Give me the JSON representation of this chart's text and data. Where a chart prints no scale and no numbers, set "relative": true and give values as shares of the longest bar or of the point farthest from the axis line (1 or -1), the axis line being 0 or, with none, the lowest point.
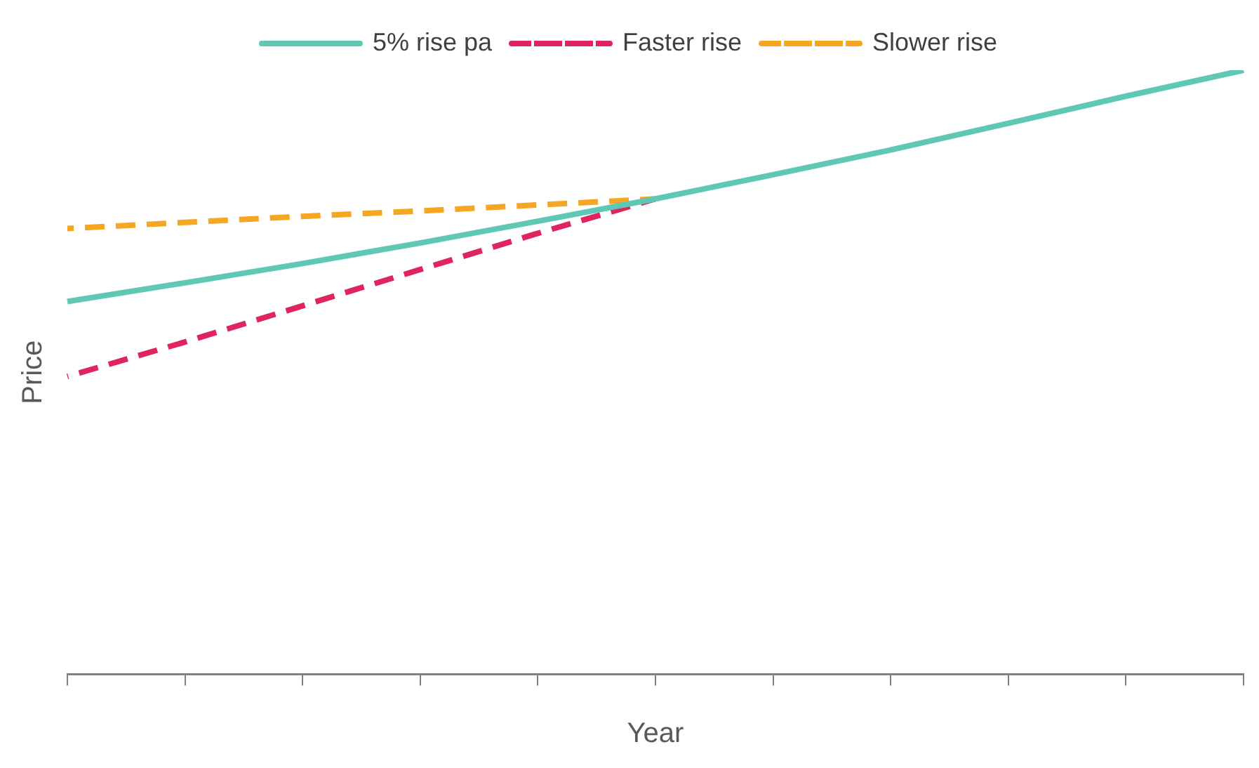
{
  "chart_data": {
    "type": "line",
    "xlabel": "Year",
    "ylabel": "Price",
    "relative": true,
    "legend": "top",
    "grid": false,
    "marker": "none",
    "categories": [
      null,
      null,
      null,
      null,
      null,
      null,
      null,
      null,
      null,
      null,
      null
    ],
    "series": [
      {
        "name": "5% rise pa",
        "color": "#5ec8b5",
        "line_style": "solid",
        "values": [
          0.617,
          0.648,
          0.68,
          0.714,
          0.75,
          0.787,
          0.827,
          0.868,
          0.912,
          0.957,
          1.0
        ]
      },
      {
        "name": "Faster rise",
        "color": "#e0245e",
        "line_style": "dashed",
        "values": [
          0.493,
          0.55,
          0.61,
          0.67,
          0.73,
          0.787,
          null,
          null,
          null,
          null,
          null
        ]
      },
      {
        "name": "Slower rise",
        "color": "#f5a623",
        "line_style": "dashed",
        "values": [
          0.738,
          0.748,
          0.758,
          0.767,
          0.777,
          0.787,
          null,
          null,
          null,
          null,
          null
        ]
      }
    ]
  }
}
